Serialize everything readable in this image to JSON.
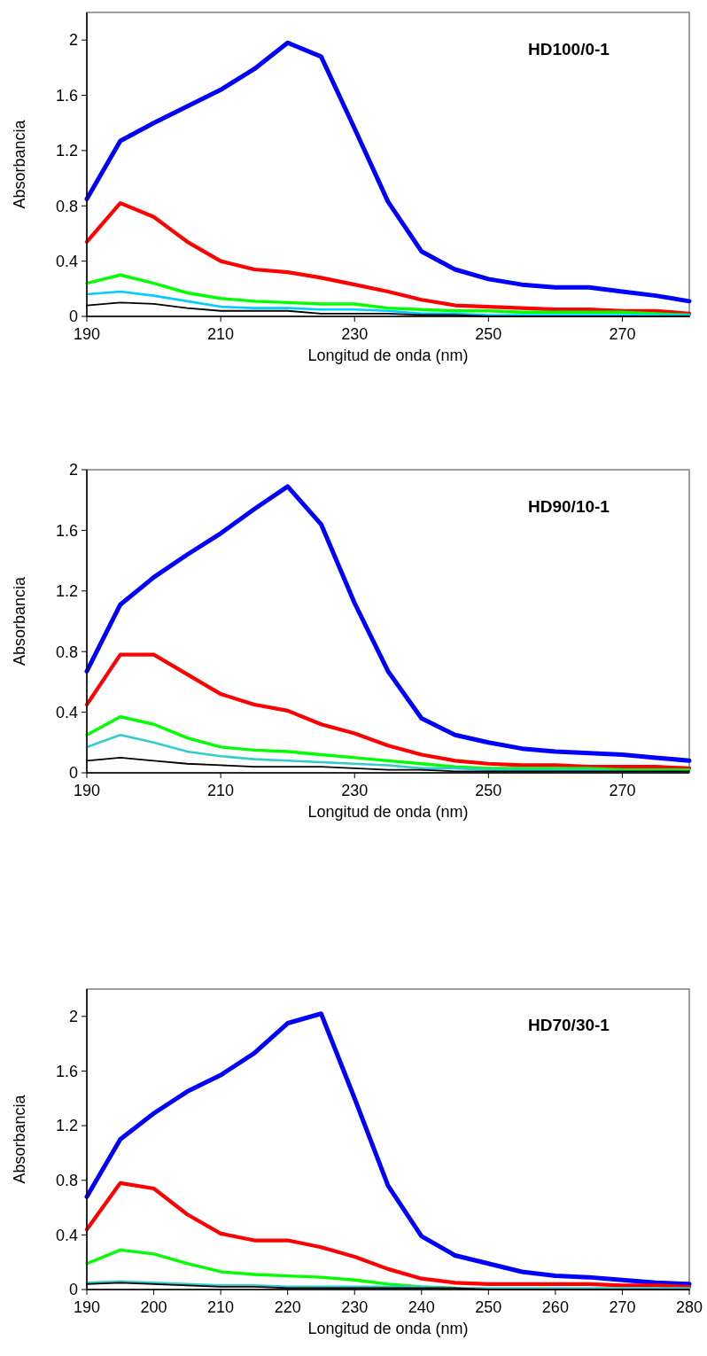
{
  "chart_data": [
    {
      "type": "line",
      "title": "HD100/0-1",
      "xlabel": "Longitud de onda (nm)",
      "ylabel": "Absorbancia",
      "x": [
        190,
        195,
        200,
        205,
        210,
        215,
        220,
        225,
        230,
        235,
        240,
        245,
        250,
        255,
        260,
        265,
        270,
        275,
        280
      ],
      "xlim": [
        190,
        280
      ],
      "xticks": [
        190,
        210,
        230,
        250,
        270
      ],
      "ylim": [
        0,
        2.2
      ],
      "yticks": [
        0,
        0.4,
        0.8,
        1.2,
        1.6,
        2
      ],
      "series": [
        {
          "color": "#0000ff",
          "values": [
            0.85,
            1.27,
            1.4,
            1.52,
            1.64,
            1.79,
            1.98,
            1.88,
            1.36,
            0.83,
            0.47,
            0.34,
            0.27,
            0.23,
            0.21,
            0.21,
            0.18,
            0.15,
            0.11
          ]
        },
        {
          "color": "#ff0000",
          "values": [
            0.54,
            0.82,
            0.72,
            0.54,
            0.4,
            0.34,
            0.32,
            0.28,
            0.23,
            0.18,
            0.12,
            0.08,
            0.07,
            0.06,
            0.05,
            0.05,
            0.04,
            0.04,
            0.02
          ]
        },
        {
          "color": "#00ff00",
          "values": [
            0.24,
            0.3,
            0.24,
            0.17,
            0.13,
            0.11,
            0.1,
            0.09,
            0.09,
            0.06,
            0.05,
            0.04,
            0.04,
            0.03,
            0.03,
            0.03,
            0.03,
            0.02,
            0.01
          ]
        },
        {
          "color": "#00ccff",
          "values": [
            0.16,
            0.18,
            0.15,
            0.11,
            0.07,
            0.06,
            0.06,
            0.05,
            0.05,
            0.04,
            0.02,
            0.02,
            0.01,
            0.01,
            0.01,
            0.01,
            0.01,
            0.01,
            0.01
          ]
        },
        {
          "color": "#000000",
          "values": [
            0.08,
            0.1,
            0.09,
            0.06,
            0.04,
            0.04,
            0.04,
            0.02,
            0.02,
            0.02,
            0.01,
            0.01,
            0,
            0,
            0,
            0,
            0,
            0,
            0
          ]
        }
      ]
    },
    {
      "type": "line",
      "title": "HD90/10-1",
      "xlabel": "Longitud de onda (nm)",
      "ylabel": "Absorbancia",
      "x": [
        190,
        195,
        200,
        205,
        210,
        215,
        220,
        225,
        230,
        235,
        240,
        245,
        250,
        255,
        260,
        265,
        270,
        275,
        280
      ],
      "xlim": [
        190,
        280
      ],
      "xticks": [
        190,
        210,
        230,
        250,
        270
      ],
      "ylim": [
        0,
        2
      ],
      "yticks": [
        0,
        0.4,
        0.8,
        1.2,
        1.6,
        2
      ],
      "series": [
        {
          "color": "#0000ff",
          "values": [
            0.67,
            1.11,
            1.29,
            1.44,
            1.58,
            1.74,
            1.89,
            1.64,
            1.12,
            0.67,
            0.36,
            0.25,
            0.2,
            0.16,
            0.14,
            0.13,
            0.12,
            0.1,
            0.08
          ]
        },
        {
          "color": "#ff0000",
          "values": [
            0.45,
            0.78,
            0.78,
            0.65,
            0.52,
            0.45,
            0.41,
            0.32,
            0.26,
            0.18,
            0.12,
            0.08,
            0.06,
            0.05,
            0.05,
            0.04,
            0.04,
            0.04,
            0.03
          ]
        },
        {
          "color": "#00ff00",
          "values": [
            0.25,
            0.37,
            0.32,
            0.23,
            0.17,
            0.15,
            0.14,
            0.12,
            0.1,
            0.08,
            0.06,
            0.04,
            0.03,
            0.03,
            0.03,
            0.03,
            0.02,
            0.02,
            0.02
          ]
        },
        {
          "color": "#33cccc",
          "values": [
            0.17,
            0.25,
            0.2,
            0.14,
            0.11,
            0.09,
            0.08,
            0.07,
            0.06,
            0.05,
            0.03,
            0.03,
            0.02,
            0.02,
            0.02,
            0.02,
            0.01,
            0.01,
            0.01
          ]
        },
        {
          "color": "#000000",
          "values": [
            0.08,
            0.1,
            0.08,
            0.06,
            0.05,
            0.04,
            0.04,
            0.04,
            0.03,
            0.02,
            0.02,
            0.01,
            0.01,
            0.01,
            0.01,
            0.01,
            0.01,
            0.01,
            0.01
          ]
        }
      ]
    },
    {
      "type": "line",
      "title": "HD70/30-1",
      "xlabel": "Longitud de onda (nm)",
      "ylabel": "Absorbancia",
      "x": [
        190,
        195,
        200,
        205,
        210,
        215,
        220,
        225,
        230,
        235,
        240,
        245,
        250,
        255,
        260,
        265,
        270,
        275,
        280
      ],
      "xlim": [
        190,
        280
      ],
      "xticks": [
        190,
        200,
        210,
        220,
        230,
        240,
        250,
        260,
        270,
        280
      ],
      "ylim": [
        0,
        2.2
      ],
      "yticks": [
        0,
        0.4,
        0.8,
        1.2,
        1.6,
        2
      ],
      "series": [
        {
          "color": "#0000ff",
          "values": [
            0.68,
            1.1,
            1.29,
            1.45,
            1.57,
            1.73,
            1.95,
            2.02,
            1.4,
            0.76,
            0.39,
            0.25,
            0.19,
            0.13,
            0.1,
            0.09,
            0.07,
            0.05,
            0.04
          ]
        },
        {
          "color": "#ff0000",
          "values": [
            0.44,
            0.78,
            0.74,
            0.55,
            0.41,
            0.36,
            0.36,
            0.31,
            0.24,
            0.15,
            0.08,
            0.05,
            0.04,
            0.04,
            0.04,
            0.04,
            0.03,
            0.03,
            0.02
          ]
        },
        {
          "color": "#00ff00",
          "values": [
            0.19,
            0.29,
            0.26,
            0.19,
            0.13,
            0.11,
            0.1,
            0.09,
            0.07,
            0.04,
            0.02,
            0.01,
            null,
            null,
            null,
            null,
            null,
            null,
            null
          ]
        },
        {
          "color": "#33cccc",
          "values": [
            0.05,
            0.06,
            0.05,
            0.04,
            0.03,
            0.03,
            0.02,
            0.02,
            0.02,
            0.02,
            0.02,
            0.01,
            0.01,
            0.01,
            0.01,
            0.01,
            0.01,
            0.01,
            0.01
          ]
        },
        {
          "color": "#000000",
          "values": [
            0.04,
            0.05,
            0.04,
            0.03,
            0.02,
            0.02,
            0.01,
            0.01,
            0.01,
            0.01,
            0.01,
            0.01,
            0,
            0,
            0,
            0,
            0,
            0,
            0
          ]
        }
      ]
    }
  ]
}
